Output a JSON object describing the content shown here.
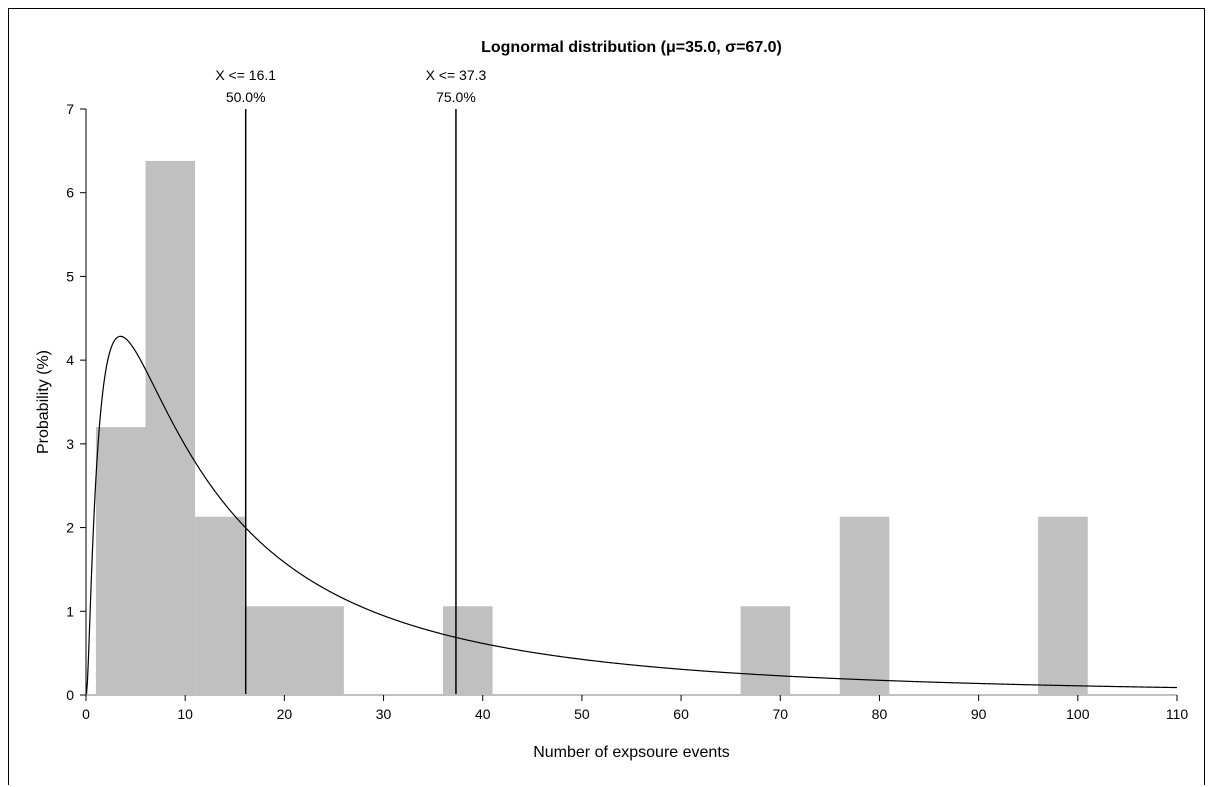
{
  "chart_data": {
    "type": "bar",
    "title": "Lognormal distribution (μ=35.0, σ=67.0)",
    "xlabel": "Number of expsoure events",
    "ylabel": "Probability (%)",
    "xlim": [
      0,
      110
    ],
    "ylim": [
      0,
      7
    ],
    "xticks": [
      "0",
      "10",
      "20",
      "30",
      "40",
      "50",
      "60",
      "70",
      "80",
      "90",
      "100",
      "110"
    ],
    "yticks": [
      "0",
      "1",
      "2",
      "3",
      "4",
      "5",
      "6",
      "7"
    ],
    "grid": false,
    "histogram": [
      {
        "x0": 1,
        "x1": 6,
        "value": 3.2
      },
      {
        "x0": 6,
        "x1": 11,
        "value": 6.38
      },
      {
        "x0": 11,
        "x1": 16,
        "value": 2.13
      },
      {
        "x0": 16,
        "x1": 26,
        "value": 1.06
      },
      {
        "x0": 36,
        "x1": 41,
        "value": 1.06
      },
      {
        "x0": 66,
        "x1": 71,
        "value": 1.06
      },
      {
        "x0": 76,
        "x1": 81,
        "value": 2.13
      },
      {
        "x0": 96,
        "x1": 101,
        "value": 2.13
      }
    ],
    "curve": {
      "name": "Lognormal pdf",
      "mu": 35.0,
      "sigma": 67.0
    },
    "markers": [
      {
        "x": 16.1,
        "label": "X <= 16.1",
        "percent": "50.0%"
      },
      {
        "x": 37.3,
        "label": "X <= 37.3",
        "percent": "75.0%"
      }
    ],
    "colors": {
      "bars": "#c0c0c0",
      "curve": "#000000",
      "baseline": "#c0c0c0",
      "markers": "#000000"
    }
  }
}
